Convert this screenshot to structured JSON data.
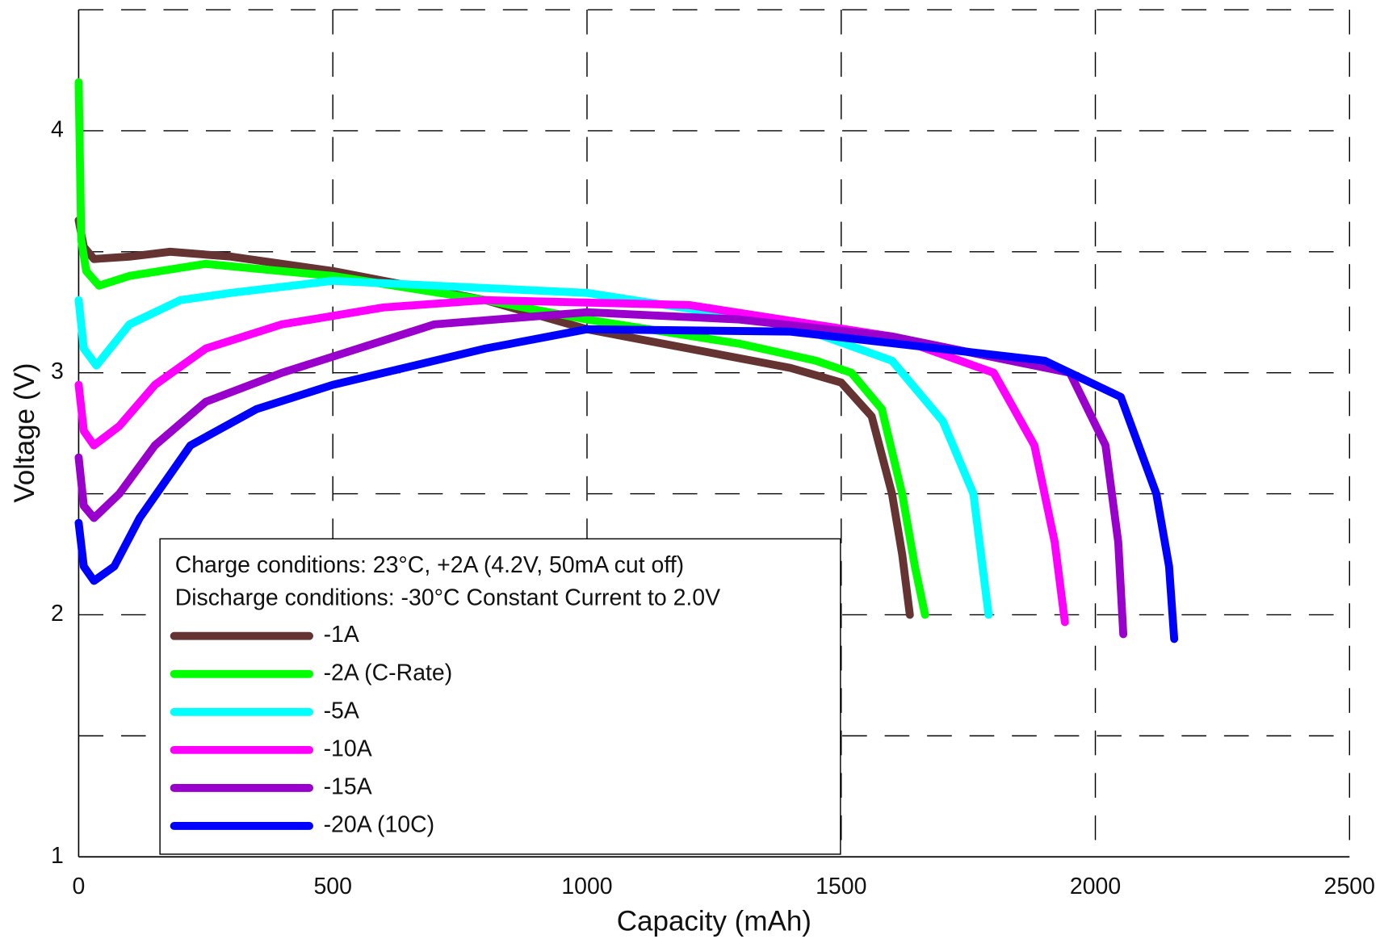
{
  "chart_data": {
    "type": "line",
    "x_label": "Capacity (mAh)",
    "y_label": "Voltage (V)",
    "xlim": [
      0,
      2500
    ],
    "ylim": [
      1,
      4.5
    ],
    "xticks": [
      0,
      500,
      1000,
      1500,
      2000,
      2500
    ],
    "yticks": [
      1,
      2,
      3,
      4
    ],
    "y_minor_grid": [
      1.5,
      2.5,
      3.5,
      4.5
    ],
    "grid": true,
    "annotations": [
      "Charge conditions: 23°C, +2A (4.2V, 50mA cut off)",
      "Discharge conditions: -30°C Constant Current to 2.0V"
    ],
    "legend": "lower left",
    "series": [
      {
        "name": "-1A",
        "color": "#663333",
        "x": [
          0,
          10,
          30,
          100,
          180,
          300,
          500,
          800,
          1000,
          1200,
          1400,
          1500,
          1560,
          1600,
          1620,
          1635
        ],
        "values": [
          3.63,
          3.52,
          3.47,
          3.48,
          3.5,
          3.48,
          3.42,
          3.3,
          3.18,
          3.1,
          3.02,
          2.96,
          2.82,
          2.5,
          2.25,
          2.0
        ]
      },
      {
        "name": "-2A (C-Rate)",
        "color": "#00ff00",
        "x": [
          0,
          5,
          15,
          40,
          100,
          250,
          500,
          800,
          1000,
          1300,
          1450,
          1520,
          1580,
          1620,
          1645,
          1665
        ],
        "values": [
          4.2,
          3.55,
          3.42,
          3.36,
          3.4,
          3.45,
          3.4,
          3.3,
          3.22,
          3.12,
          3.05,
          3.0,
          2.85,
          2.5,
          2.2,
          2.0
        ]
      },
      {
        "name": "-5A",
        "color": "#00ffff",
        "x": [
          0,
          10,
          35,
          100,
          200,
          300,
          500,
          1000,
          1400,
          1600,
          1700,
          1760,
          1790
        ],
        "values": [
          3.3,
          3.1,
          3.03,
          3.2,
          3.3,
          3.33,
          3.38,
          3.33,
          3.2,
          3.05,
          2.8,
          2.5,
          2.0
        ]
      },
      {
        "name": "-10A",
        "color": "#ff00ff",
        "x": [
          0,
          10,
          30,
          80,
          150,
          250,
          400,
          600,
          800,
          1200,
          1600,
          1800,
          1880,
          1920,
          1940
        ],
        "values": [
          2.95,
          2.76,
          2.7,
          2.78,
          2.95,
          3.1,
          3.2,
          3.27,
          3.3,
          3.28,
          3.15,
          3.0,
          2.7,
          2.3,
          1.97
        ]
      },
      {
        "name": "-15A",
        "color": "#9900cc",
        "x": [
          0,
          10,
          30,
          80,
          150,
          250,
          400,
          700,
          1000,
          1300,
          1600,
          1950,
          2020,
          2045,
          2055
        ],
        "values": [
          2.65,
          2.45,
          2.4,
          2.5,
          2.7,
          2.88,
          3.0,
          3.2,
          3.25,
          3.22,
          3.15,
          3.0,
          2.7,
          2.3,
          1.92
        ]
      },
      {
        "name": "-20A (10C)",
        "color": "#0000ff",
        "x": [
          0,
          10,
          30,
          70,
          120,
          220,
          350,
          500,
          800,
          1000,
          1400,
          1900,
          2050,
          2120,
          2145,
          2155
        ],
        "values": [
          2.38,
          2.2,
          2.14,
          2.2,
          2.4,
          2.7,
          2.85,
          2.95,
          3.1,
          3.18,
          3.17,
          3.05,
          2.9,
          2.5,
          2.2,
          1.9
        ]
      }
    ]
  }
}
